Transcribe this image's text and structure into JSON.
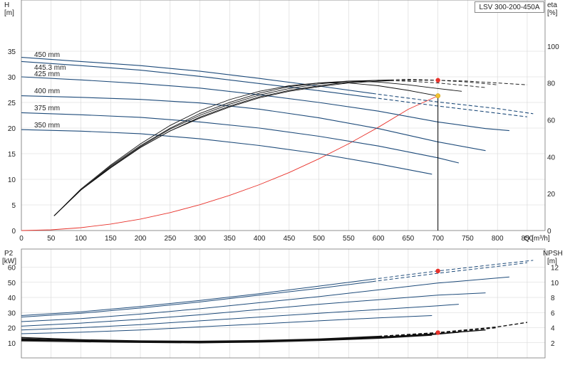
{
  "model": "LSV 300-200-450A",
  "chart_data": [
    {
      "type": "line",
      "panel": "head-efficiency",
      "x_axis": {
        "label": "Q [m³/h]",
        "range": [
          0,
          880
        ],
        "ticks": [
          0,
          50,
          100,
          150,
          200,
          250,
          300,
          350,
          400,
          450,
          500,
          550,
          600,
          650,
          700,
          750,
          800,
          850
        ]
      },
      "y_axis_left": {
        "label": "H",
        "unit": "[m]",
        "range": [
          0,
          45
        ],
        "ticks": [
          0,
          5,
          10,
          15,
          20,
          25,
          30,
          35
        ]
      },
      "y_axis_right": {
        "label": "eta",
        "unit": "[%]",
        "range": [
          0,
          125
        ],
        "ticks": [
          0,
          20,
          40,
          60,
          80,
          100
        ]
      },
      "grid": true,
      "head_curves": [
        {
          "name": "450 mm",
          "q": [
            0,
            100,
            200,
            300,
            400,
            500,
            600,
            700,
            800,
            860
          ],
          "h": [
            33.8,
            33.0,
            32.2,
            31.1,
            29.7,
            28.2,
            26.6,
            25.1,
            23.8,
            22.8
          ],
          "dashed_from": 590
        },
        {
          "name": "445.3 mm",
          "q": [
            0,
            100,
            200,
            300,
            400,
            500,
            600,
            700,
            800,
            850
          ],
          "h": [
            33.0,
            32.2,
            31.3,
            30.1,
            28.7,
            27.3,
            25.8,
            24.3,
            22.9,
            22.2
          ],
          "dashed_from": 590
        },
        {
          "name": "425 mm",
          "q": [
            0,
            100,
            200,
            300,
            400,
            500,
            600,
            700,
            780,
            820
          ],
          "h": [
            30.0,
            29.4,
            28.7,
            27.8,
            26.5,
            25.0,
            23.3,
            21.2,
            19.9,
            19.5
          ],
          "dashed_from": null
        },
        {
          "name": "400 mm",
          "q": [
            0,
            100,
            200,
            300,
            400,
            500,
            600,
            700,
            780
          ],
          "h": [
            26.3,
            26.0,
            25.6,
            24.9,
            23.7,
            22.0,
            19.9,
            17.3,
            15.6
          ],
          "dashed_from": null
        },
        {
          "name": "375 mm",
          "q": [
            0,
            100,
            200,
            300,
            400,
            500,
            600,
            700,
            735
          ],
          "h": [
            23.0,
            22.6,
            22.1,
            21.2,
            20.0,
            18.4,
            16.5,
            14.2,
            13.2
          ],
          "dashed_from": null
        },
        {
          "name": "350 mm",
          "q": [
            0,
            100,
            200,
            300,
            400,
            500,
            600,
            690
          ],
          "h": [
            19.7,
            19.4,
            18.9,
            17.9,
            16.6,
            15.0,
            13.0,
            11.0
          ],
          "dashed_from": null
        }
      ],
      "efficiency_curves": [
        {
          "q": [
            55,
            100,
            150,
            200,
            250,
            300,
            350,
            400,
            450,
            500,
            550,
            600,
            650,
            700,
            750,
            800,
            850
          ],
          "eta": [
            8,
            22,
            34,
            45,
            54,
            61,
            67,
            72,
            75.5,
            78,
            80,
            81,
            81.5,
            81.5,
            81,
            80,
            79
          ],
          "dashed_from": 620
        },
        {
          "q": [
            55,
            100,
            150,
            200,
            250,
            300,
            350,
            400,
            450,
            500,
            550,
            600,
            650,
            700,
            750,
            800
          ],
          "eta": [
            8,
            22,
            34,
            45,
            54,
            61.5,
            67.5,
            72.5,
            76,
            78.5,
            80.5,
            81.5,
            82,
            81.5,
            80.5,
            79
          ],
          "dashed_from": 620
        },
        {
          "q": [
            55,
            100,
            150,
            200,
            250,
            300,
            350,
            400,
            450,
            500,
            550,
            600,
            650,
            700,
            750,
            780
          ],
          "eta": [
            8,
            22,
            34.5,
            45.5,
            55,
            62.5,
            68.5,
            73.5,
            77,
            79.5,
            81,
            81.5,
            81,
            80,
            78.5,
            77.5
          ],
          "dashed_from": 620
        },
        {
          "q": [
            55,
            100,
            150,
            200,
            250,
            300,
            350,
            400,
            450,
            500,
            550,
            600,
            650,
            700,
            740
          ],
          "eta": [
            8,
            22,
            35,
            46,
            55.5,
            63.5,
            69.5,
            74.5,
            78,
            80,
            81,
            80.5,
            79,
            77,
            75.5
          ],
          "dashed_from": null
        },
        {
          "q": [
            55,
            100,
            150,
            200,
            250,
            300,
            350,
            400,
            450,
            500,
            550,
            600,
            650,
            700
          ],
          "eta": [
            8,
            22.5,
            35.5,
            47,
            57,
            65,
            71,
            75.5,
            78.5,
            80,
            80,
            78.5,
            76,
            73
          ],
          "dashed_from": null
        }
      ],
      "system_curve": {
        "color": "#e8322b",
        "q": [
          0,
          50,
          100,
          150,
          200,
          250,
          300,
          350,
          400,
          450,
          500,
          550,
          600,
          650,
          700
        ],
        "h": [
          0,
          0.14,
          0.56,
          1.26,
          2.24,
          3.5,
          5.04,
          6.86,
          8.96,
          11.34,
          14.0,
          16.94,
          20.16,
          23.66,
          26.3
        ]
      },
      "operating_point": {
        "q": 700,
        "h": 26.3,
        "eta": 81.5
      }
    },
    {
      "type": "line",
      "panel": "power-npsh",
      "x_axis": {
        "range": [
          0,
          880
        ]
      },
      "y_axis_left": {
        "label": "P2",
        "unit": "[kW]",
        "range": [
          0,
          72
        ],
        "ticks": [
          10,
          20,
          30,
          40,
          50,
          60
        ]
      },
      "y_axis_right": {
        "label": "NPSH",
        "unit": "[m]",
        "range": [
          0,
          14.4
        ],
        "ticks": [
          2,
          4,
          6,
          8,
          10,
          12
        ]
      },
      "grid": true,
      "power_curves": [
        {
          "q": [
            0,
            100,
            200,
            300,
            400,
            500,
            600,
            700,
            800,
            860
          ],
          "p": [
            28,
            30.5,
            34,
            38,
            42.5,
            47.5,
            52.5,
            57.5,
            62,
            64.5
          ],
          "dashed_from": 590
        },
        {
          "q": [
            0,
            100,
            200,
            300,
            400,
            500,
            600,
            700,
            800,
            850
          ],
          "p": [
            27,
            29.5,
            33,
            37,
            41.5,
            46,
            51,
            56,
            60.5,
            63
          ],
          "dashed_from": 590
        },
        {
          "q": [
            0,
            100,
            200,
            300,
            400,
            500,
            600,
            700,
            820
          ],
          "p": [
            24,
            26,
            29,
            32.5,
            36.5,
            40.5,
            45,
            49.5,
            53.5
          ],
          "dashed_from": null
        },
        {
          "q": [
            0,
            100,
            200,
            300,
            400,
            500,
            600,
            700,
            780
          ],
          "p": [
            21,
            23,
            25.5,
            28.5,
            32,
            35.5,
            38.5,
            41.5,
            43
          ],
          "dashed_from": null
        },
        {
          "q": [
            0,
            100,
            200,
            300,
            400,
            500,
            600,
            700,
            735
          ],
          "p": [
            18.5,
            20,
            22,
            24.5,
            27,
            29.5,
            32,
            34.5,
            35.5
          ],
          "dashed_from": null
        },
        {
          "q": [
            0,
            100,
            200,
            300,
            400,
            500,
            600,
            690
          ],
          "p": [
            16,
            17,
            18.5,
            20.5,
            22.5,
            24.5,
            26.5,
            28
          ],
          "dashed_from": null
        }
      ],
      "npsh_curves": [
        {
          "q": [
            0,
            100,
            200,
            300,
            400,
            500,
            600,
            700,
            800,
            850
          ],
          "npsh": [
            2.7,
            2.4,
            2.25,
            2.2,
            2.3,
            2.5,
            2.85,
            3.35,
            4.1,
            4.7
          ],
          "dashed_from": 600
        },
        {
          "q": [
            0,
            100,
            200,
            300,
            400,
            500,
            600,
            700,
            800
          ],
          "npsh": [
            2.55,
            2.3,
            2.2,
            2.15,
            2.25,
            2.45,
            2.8,
            3.3,
            4.0
          ],
          "dashed_from": 600
        },
        {
          "q": [
            0,
            100,
            200,
            300,
            400,
            500,
            600,
            700,
            780
          ],
          "npsh": [
            2.45,
            2.25,
            2.15,
            2.1,
            2.2,
            2.4,
            2.75,
            3.2,
            3.7
          ],
          "dashed_from": null
        },
        {
          "q": [
            0,
            100,
            200,
            300,
            400,
            500,
            600,
            700,
            735
          ],
          "npsh": [
            2.35,
            2.2,
            2.1,
            2.05,
            2.15,
            2.35,
            2.7,
            3.15,
            3.4
          ],
          "dashed_from": null
        },
        {
          "q": [
            0,
            100,
            200,
            300,
            400,
            500,
            600,
            690
          ],
          "npsh": [
            2.25,
            2.15,
            2.05,
            2.0,
            2.1,
            2.3,
            2.6,
            3.0
          ],
          "dashed_from": null
        }
      ],
      "operating_point": {
        "q": 700,
        "p": 57.5,
        "npsh": 3.35
      }
    }
  ]
}
